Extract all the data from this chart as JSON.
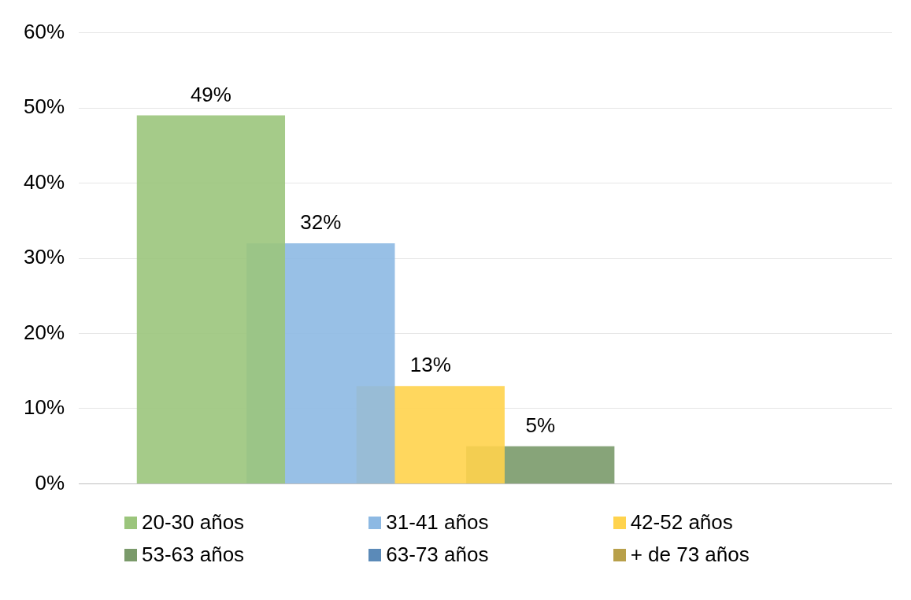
{
  "chart_data": {
    "type": "bar",
    "categories": [
      null
    ],
    "series": [
      {
        "name": "20-30 años",
        "color": "#9bc57c",
        "values": [
          49
        ],
        "value_labels": [
          "49%"
        ]
      },
      {
        "name": "31-41 años",
        "color": "#8db9e3",
        "values": [
          32
        ],
        "value_labels": [
          "32%"
        ]
      },
      {
        "name": "42-52 años",
        "color": "#ffd34d",
        "values": [
          13
        ],
        "value_labels": [
          "13%"
        ]
      },
      {
        "name": "53-63 años",
        "color": "#7a9a6a",
        "values": [
          5
        ],
        "value_labels": [
          "5%"
        ]
      },
      {
        "name": "63-73 años",
        "color": "#5b8ab8",
        "values": [
          null
        ],
        "value_labels": [
          null
        ]
      },
      {
        "name": "+ de 73 años",
        "color": "#b8a04a",
        "values": [
          null
        ],
        "value_labels": [
          null
        ]
      }
    ],
    "ylim": [
      0,
      60
    ],
    "yticks": [
      {
        "value": 0,
        "label": "0%"
      },
      {
        "value": 10,
        "label": "10%"
      },
      {
        "value": 20,
        "label": "20%"
      },
      {
        "value": 30,
        "label": "30%"
      },
      {
        "value": 40,
        "label": "40%"
      },
      {
        "value": 50,
        "label": "50%"
      },
      {
        "value": 60,
        "label": "60%"
      }
    ],
    "grid": "y",
    "legend": "bottom"
  }
}
